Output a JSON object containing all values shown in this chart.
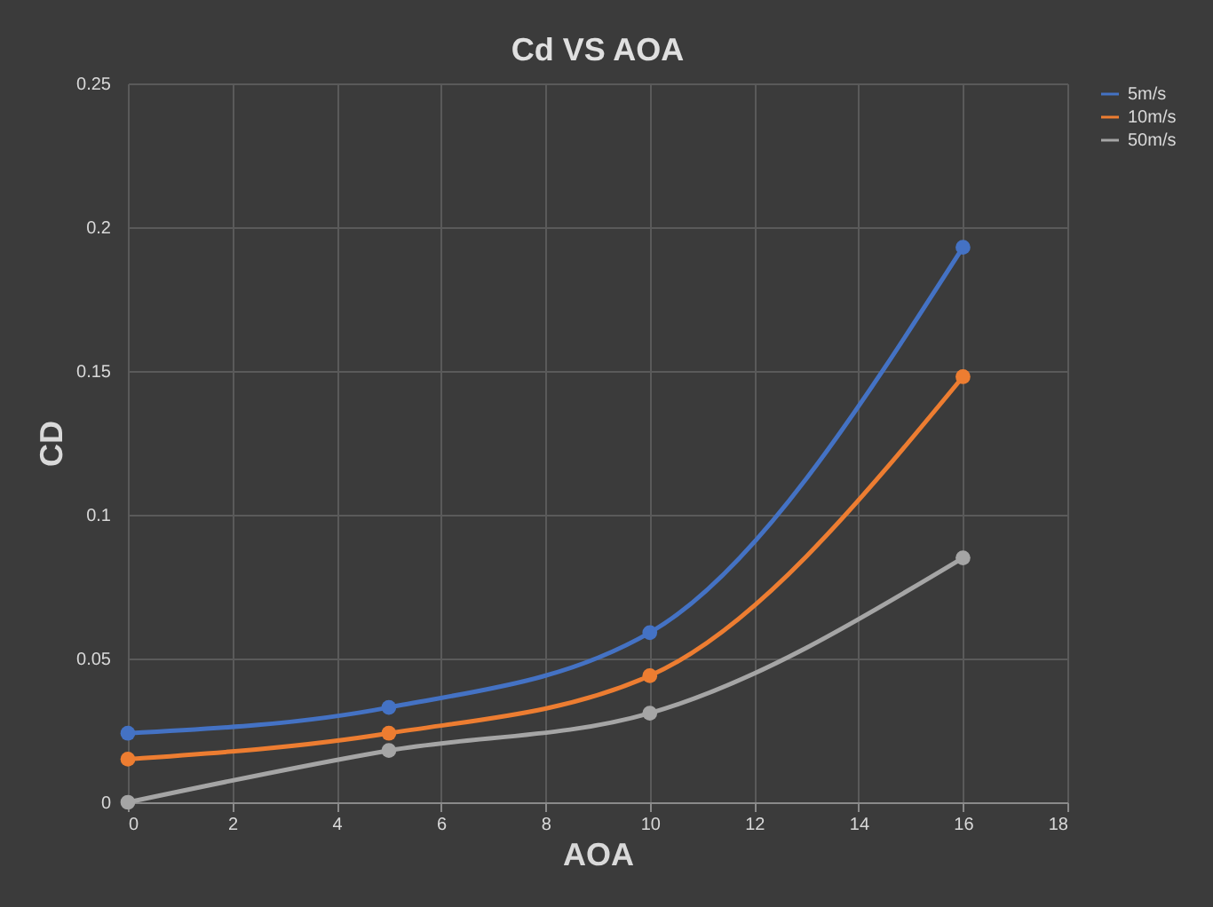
{
  "chart_data": {
    "type": "line",
    "title": "Cd VS AOA",
    "xlabel": "AOA",
    "ylabel": "CD",
    "x": [
      0,
      5,
      10,
      16
    ],
    "series": [
      {
        "name": "5m/s",
        "color": "#4472c4",
        "values": [
          0.024,
          0.033,
          0.059,
          0.193
        ]
      },
      {
        "name": "10m/s",
        "color": "#ed7d31",
        "values": [
          0.015,
          0.024,
          0.044,
          0.148
        ]
      },
      {
        "name": "50m/s",
        "color": "#a5a5a5",
        "values": [
          0.0,
          0.018,
          0.031,
          0.085
        ]
      }
    ],
    "xlim": [
      0,
      18
    ],
    "xticks": [
      0,
      2,
      4,
      6,
      8,
      10,
      12,
      14,
      16,
      18
    ],
    "ylim": [
      0,
      0.25
    ],
    "yticks": [
      0,
      0.05,
      0.1,
      0.15,
      0.2,
      0.25
    ],
    "grid": true,
    "legend": "right",
    "marker": "circle",
    "line_style": "solid"
  }
}
